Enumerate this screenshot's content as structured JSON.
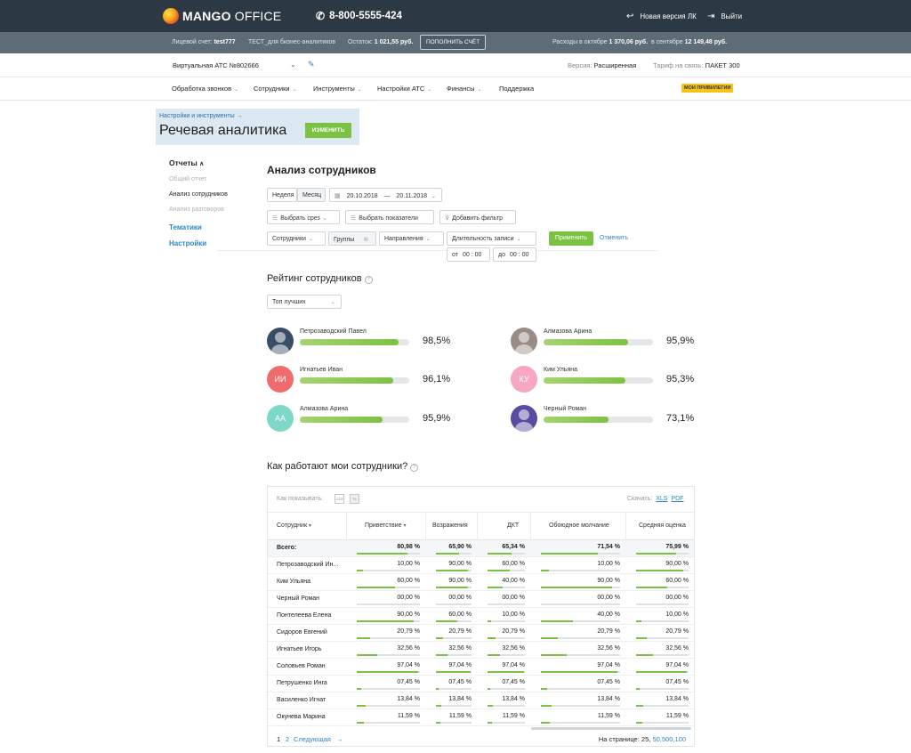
{
  "header": {
    "logo_mango": "MANGO",
    "logo_office": "OFFICE",
    "phone": "8-800-5555-424",
    "new_version": "Новая версия ЛК",
    "logout": "Выйти"
  },
  "account": {
    "label": "Лицевой счет:",
    "value": "test777",
    "name": "ТЕСТ_для бизнес-аналитиков",
    "balance_label": "Остаток:",
    "balance": "1 021,55 руб.",
    "topup": "ПОПОЛНИТЬ СЧЁТ",
    "exp_oct_label": "Расходы в октябре",
    "exp_oct": "1 370,06 руб.",
    "exp_sep_label": "в сентябре",
    "exp_sep": "12 149,48 руб."
  },
  "ats": {
    "name": "Виртуальная АТС №802666",
    "version_label": "Версия:",
    "version": "Расширенная",
    "tariff_label": "Тариф на связь:",
    "tariff": "ПАКЕТ 300"
  },
  "menu": {
    "items": [
      "Обработка звонков",
      "Сотрудники",
      "Инструменты",
      "Настройки АТС",
      "Финансы",
      "Поддержка"
    ],
    "badge": "МОИ ПРИВИЛЕГИИ"
  },
  "hero": {
    "crumb": "Настройки и инструменты →",
    "title": "Речевая аналитика",
    "change": "ИЗМЕНИТЬ"
  },
  "sidebar": {
    "reports": "Отчеты",
    "general": "Общий отчет",
    "staff": "Анализ сотрудников",
    "calls": "Анализ разговоров",
    "topics": "Тематики",
    "settings": "Настройки"
  },
  "main": {
    "title": "Анализ сотрудников",
    "week": "Неделя",
    "month": "Месяц",
    "date_from": "20.10.2018",
    "date_dash": "—",
    "date_to": "20.11.2018",
    "slice": "Выбрать срез",
    "indicators": "Выбрать показатели",
    "add_filter": "Добавить фильтр",
    "f_staff": "Сотрудники",
    "f_groups": "Группы",
    "f_directions": "Направления",
    "f_duration": "Длительность записи",
    "from_label": "от",
    "from_time": "00 : 00",
    "to_label": "до",
    "to_time": "00 : 00",
    "apply": "Применить",
    "cancel": "Отменить"
  },
  "rating": {
    "title": "Рейтинг сотрудников",
    "select": "Топ лучших",
    "entries": [
      {
        "name": "Петрозаводский Павел",
        "pct": "98,5%",
        "value": 0.9,
        "initials": "",
        "color": "#3a4d66"
      },
      {
        "name": "Алмазова Арина",
        "pct": "95,9%",
        "value": 0.77,
        "initials": "",
        "color": "#9a8c84"
      },
      {
        "name": "Игнатьев Иван",
        "pct": "96,1%",
        "value": 0.85,
        "initials": "ИИ",
        "color": "#f06c6c"
      },
      {
        "name": "Ким Ульяна",
        "pct": "95,3%",
        "value": 0.75,
        "initials": "КУ",
        "color": "#f7a7c4"
      },
      {
        "name": "Алмазова Арина",
        "pct": "95,9%",
        "value": 0.76,
        "initials": "АА",
        "color": "#7ed8c8"
      },
      {
        "name": "Черный Роман",
        "pct": "73,1%",
        "value": 0.59,
        "initials": "",
        "color": "#5a4aa0"
      }
    ]
  },
  "table": {
    "title": "Как работают мои сотрудники?",
    "how_label": "Как показывать:",
    "mode_count": "123",
    "mode_pct": "%",
    "download": "Скачать:",
    "xls": "XLS",
    "pdf": "PDF",
    "columns": [
      "Сотрудник",
      "Приветствие",
      "Возражения",
      "ДКТ",
      "Обоюдное молчание",
      "Средняя оценка"
    ],
    "total": {
      "name": "Всего:",
      "values": [
        "80,98 %",
        "65,90 %",
        "65,34 %",
        "71,54 %",
        "75,99 %"
      ]
    },
    "rows": [
      {
        "name": "Петрозаводский Ин...",
        "values": [
          "10,00 %",
          "90,00 %",
          "60,00 %",
          "10,00 %",
          "90,00 %"
        ]
      },
      {
        "name": "Ким Ульяна",
        "values": [
          "60,00 %",
          "90,00 %",
          "40,00 %",
          "90,00 %",
          "60,00 %"
        ]
      },
      {
        "name": "Черный Роман",
        "values": [
          "00,00 %",
          "00,00 %",
          "00,00 %",
          "00,00 %",
          "00,00 %"
        ]
      },
      {
        "name": "Понтелеева Елена",
        "values": [
          "90,00 %",
          "60,00 %",
          "10,00 %",
          "40,00 %",
          "10,00 %"
        ]
      },
      {
        "name": "Сидоров Евгений",
        "values": [
          "20,79 %",
          "20,79 %",
          "20,79 %",
          "20,79 %",
          "20,79 %"
        ]
      },
      {
        "name": "Игнатьев Игорь",
        "values": [
          "32,56 %",
          "32,56 %",
          "32,56 %",
          "32,56 %",
          "32,56 %"
        ]
      },
      {
        "name": "Соловьев Роман",
        "values": [
          "97,04 %",
          "97,04 %",
          "97,04 %",
          "97,04 %",
          "97,04 %"
        ]
      },
      {
        "name": "Петрушенко Инга",
        "values": [
          "07,45 %",
          "07,45 %",
          "07,45 %",
          "07,45 %",
          "07,45 %"
        ]
      },
      {
        "name": "Василенко Игнат",
        "values": [
          "13,84 %",
          "13,84 %",
          "13,84 %",
          "13,84 %",
          "13,84 %"
        ]
      },
      {
        "name": "Окунева Марина",
        "values": [
          "11,59 %",
          "11,59 %",
          "11,59 %",
          "11,59 %",
          "11,59 %"
        ]
      }
    ],
    "page1": "1",
    "page2": "2",
    "next": "Следующая",
    "per_page_label": "На странице:",
    "per_page_25": "25,",
    "per_page_50": "50,",
    "per_page_500": "500,",
    "per_page_100": "100"
  },
  "colors": {
    "accent": "#7cc242",
    "link": "#2f86c4",
    "topbar": "#2c3945",
    "accountbar": "#5e6c78",
    "badge": "#f4c21b"
  }
}
